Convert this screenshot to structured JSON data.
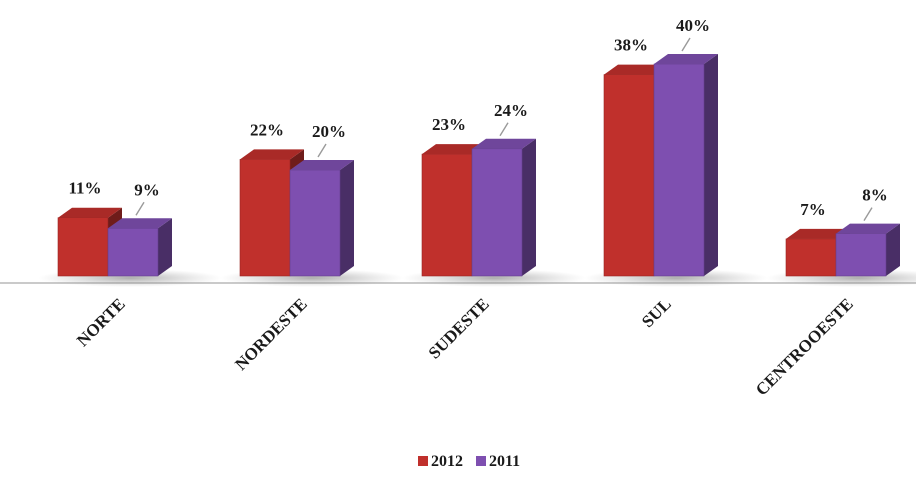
{
  "chart_data": {
    "type": "bar",
    "style": "3d-clustered-column",
    "categories": [
      "NORTE",
      "NORDESTE",
      "SUDESTE",
      "SUL",
      "CENTROOESTE"
    ],
    "series": [
      {
        "name": "2012",
        "values": [
          11,
          22,
          23,
          38,
          7
        ],
        "labels": [
          "11%",
          "22%",
          "23%",
          "38%",
          "7%"
        ],
        "color": "#c0302c"
      },
      {
        "name": "2011",
        "values": [
          9,
          20,
          24,
          40,
          8
        ],
        "labels": [
          "9%",
          "20%",
          "24%",
          "40%",
          "8%"
        ],
        "color": "#7e4fb0"
      }
    ],
    "title": "",
    "xlabel": "",
    "ylabel": "",
    "ylim": [
      0,
      45
    ],
    "unit": "%",
    "grid": false,
    "legend_position": "bottom-center"
  }
}
